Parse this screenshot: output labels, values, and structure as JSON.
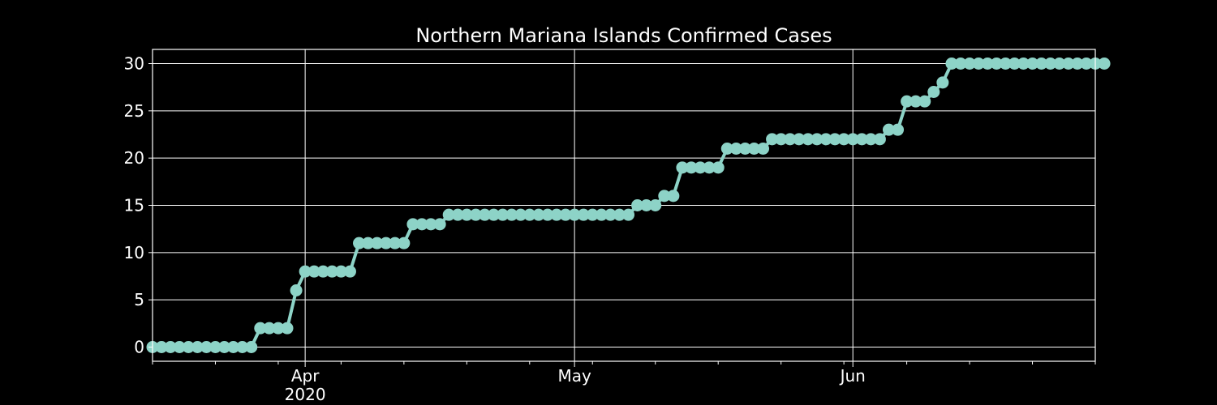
{
  "chart_data": {
    "type": "line",
    "title": "Northern Mariana Islands Confirmed Cases",
    "xlabel": "",
    "ylabel": "",
    "x_start": "2020-03-15",
    "x_end": "2020-06-28",
    "ylim": [
      -1.5,
      31.5
    ],
    "y_ticks": [
      0,
      5,
      10,
      15,
      20,
      25,
      30
    ],
    "x_major_ticks": [
      {
        "date": "2020-04-01",
        "label": "Apr",
        "sublabel": "2020"
      },
      {
        "date": "2020-05-01",
        "label": "May",
        "sublabel": ""
      },
      {
        "date": "2020-06-01",
        "label": "Jun",
        "sublabel": ""
      }
    ],
    "x_minor_ticks": [
      "2020-03-15",
      "2020-03-22",
      "2020-03-29",
      "2020-04-05",
      "2020-04-12",
      "2020-04-19",
      "2020-04-26",
      "2020-05-03",
      "2020-05-10",
      "2020-05-17",
      "2020-05-24",
      "2020-05-31",
      "2020-06-07",
      "2020-06-14",
      "2020-06-21",
      "2020-06-28"
    ],
    "grid": true,
    "colors": {
      "background": "#000000",
      "line": "#8dd3c7",
      "text": "#ffffff",
      "grid": "#ffffff"
    },
    "series": [
      {
        "start_date": "2020-03-15",
        "values": [
          0,
          0,
          0,
          0,
          0,
          0,
          0,
          0,
          0,
          0,
          0,
          0,
          2,
          2,
          2,
          2,
          6,
          8,
          8,
          8,
          8,
          8,
          8,
          11,
          11,
          11,
          11,
          11,
          11,
          13,
          13,
          13,
          13,
          14,
          14,
          14,
          14,
          14,
          14,
          14,
          14,
          14,
          14,
          14,
          14,
          14,
          14,
          14,
          14,
          14,
          14,
          14,
          14,
          14,
          15,
          15,
          15,
          16,
          16,
          19,
          19,
          19,
          19,
          19,
          21,
          21,
          21,
          21,
          21,
          22,
          22,
          22,
          22,
          22,
          22,
          22,
          22,
          22,
          22,
          22,
          22,
          22,
          23,
          23,
          26,
          26,
          26,
          27,
          28,
          30,
          30,
          30,
          30,
          30,
          30,
          30,
          30,
          30,
          30,
          30,
          30,
          30,
          30,
          30,
          30,
          30,
          30
        ]
      }
    ]
  }
}
